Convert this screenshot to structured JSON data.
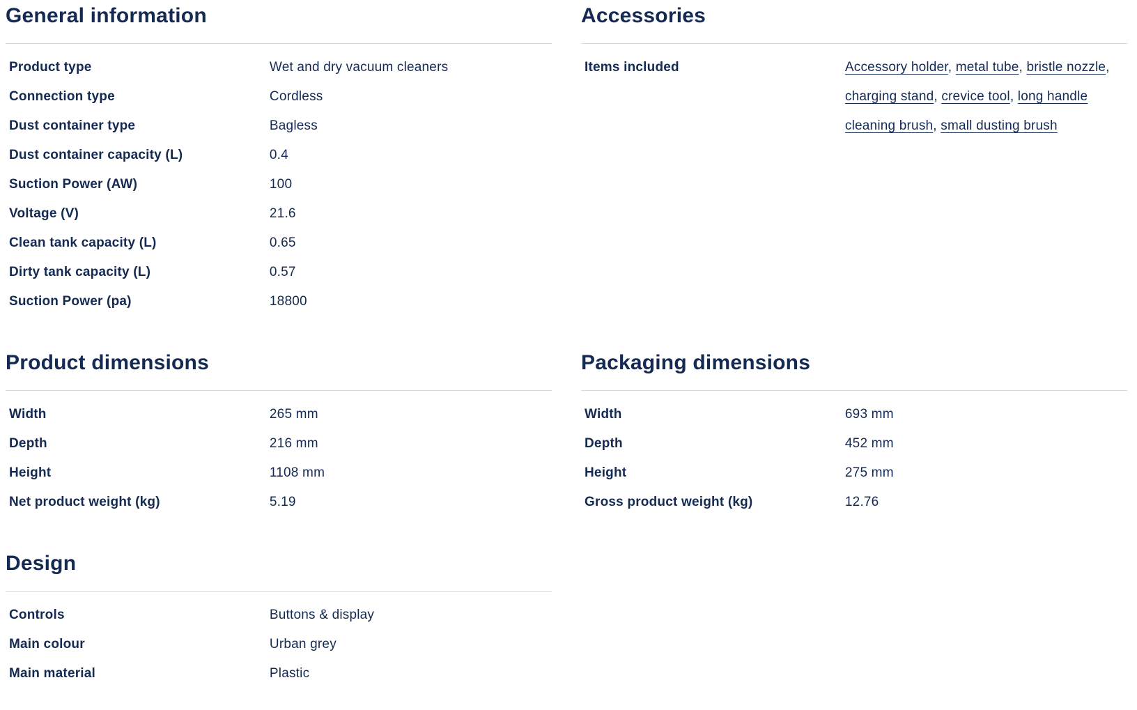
{
  "theme": {
    "text_color": "#142a52",
    "divider_color": "#d8d8d8",
    "link_color": "#142a52",
    "background_color": "#ffffff"
  },
  "sections": [
    {
      "id": "general-information",
      "title": "General information",
      "rows": [
        {
          "label": "Product type",
          "value": "Wet and dry vacuum cleaners"
        },
        {
          "label": "Connection type",
          "value": "Cordless"
        },
        {
          "label": "Dust container type",
          "value": "Bagless"
        },
        {
          "label": "Dust container capacity (L)",
          "value": "0.4"
        },
        {
          "label": "Suction Power (AW)",
          "value": "100"
        },
        {
          "label": "Voltage (V)",
          "value": "21.6"
        },
        {
          "label": "Clean tank capacity (L)",
          "value": "0.65"
        },
        {
          "label": "Dirty tank capacity (L)",
          "value": "0.57"
        },
        {
          "label": "Suction Power (pa)",
          "value": "18800"
        }
      ]
    },
    {
      "id": "accessories",
      "title": "Accessories",
      "rows": [
        {
          "label": "Items included",
          "links": [
            "Accessory holder",
            "metal tube",
            "bristle nozzle",
            "charging stand",
            "crevice tool",
            "long handle cleaning brush",
            "small dusting brush"
          ],
          "link_separator": ", "
        }
      ]
    },
    {
      "id": "product-dimensions",
      "title": "Product dimensions",
      "rows": [
        {
          "label": "Width",
          "value": "265 mm"
        },
        {
          "label": "Depth",
          "value": "216 mm"
        },
        {
          "label": "Height",
          "value": "1108 mm"
        },
        {
          "label": "Net product weight (kg)",
          "value": "5.19"
        }
      ]
    },
    {
      "id": "packaging-dimensions",
      "title": "Packaging dimensions",
      "rows": [
        {
          "label": "Width",
          "value": "693 mm"
        },
        {
          "label": "Depth",
          "value": "452 mm"
        },
        {
          "label": "Height",
          "value": "275 mm"
        },
        {
          "label": "Gross product weight (kg)",
          "value": "12.76"
        }
      ]
    },
    {
      "id": "design",
      "title": "Design",
      "rows": [
        {
          "label": "Controls",
          "value": "Buttons & display"
        },
        {
          "label": "Main colour",
          "value": "Urban grey"
        },
        {
          "label": "Main material",
          "value": "Plastic"
        }
      ]
    }
  ]
}
